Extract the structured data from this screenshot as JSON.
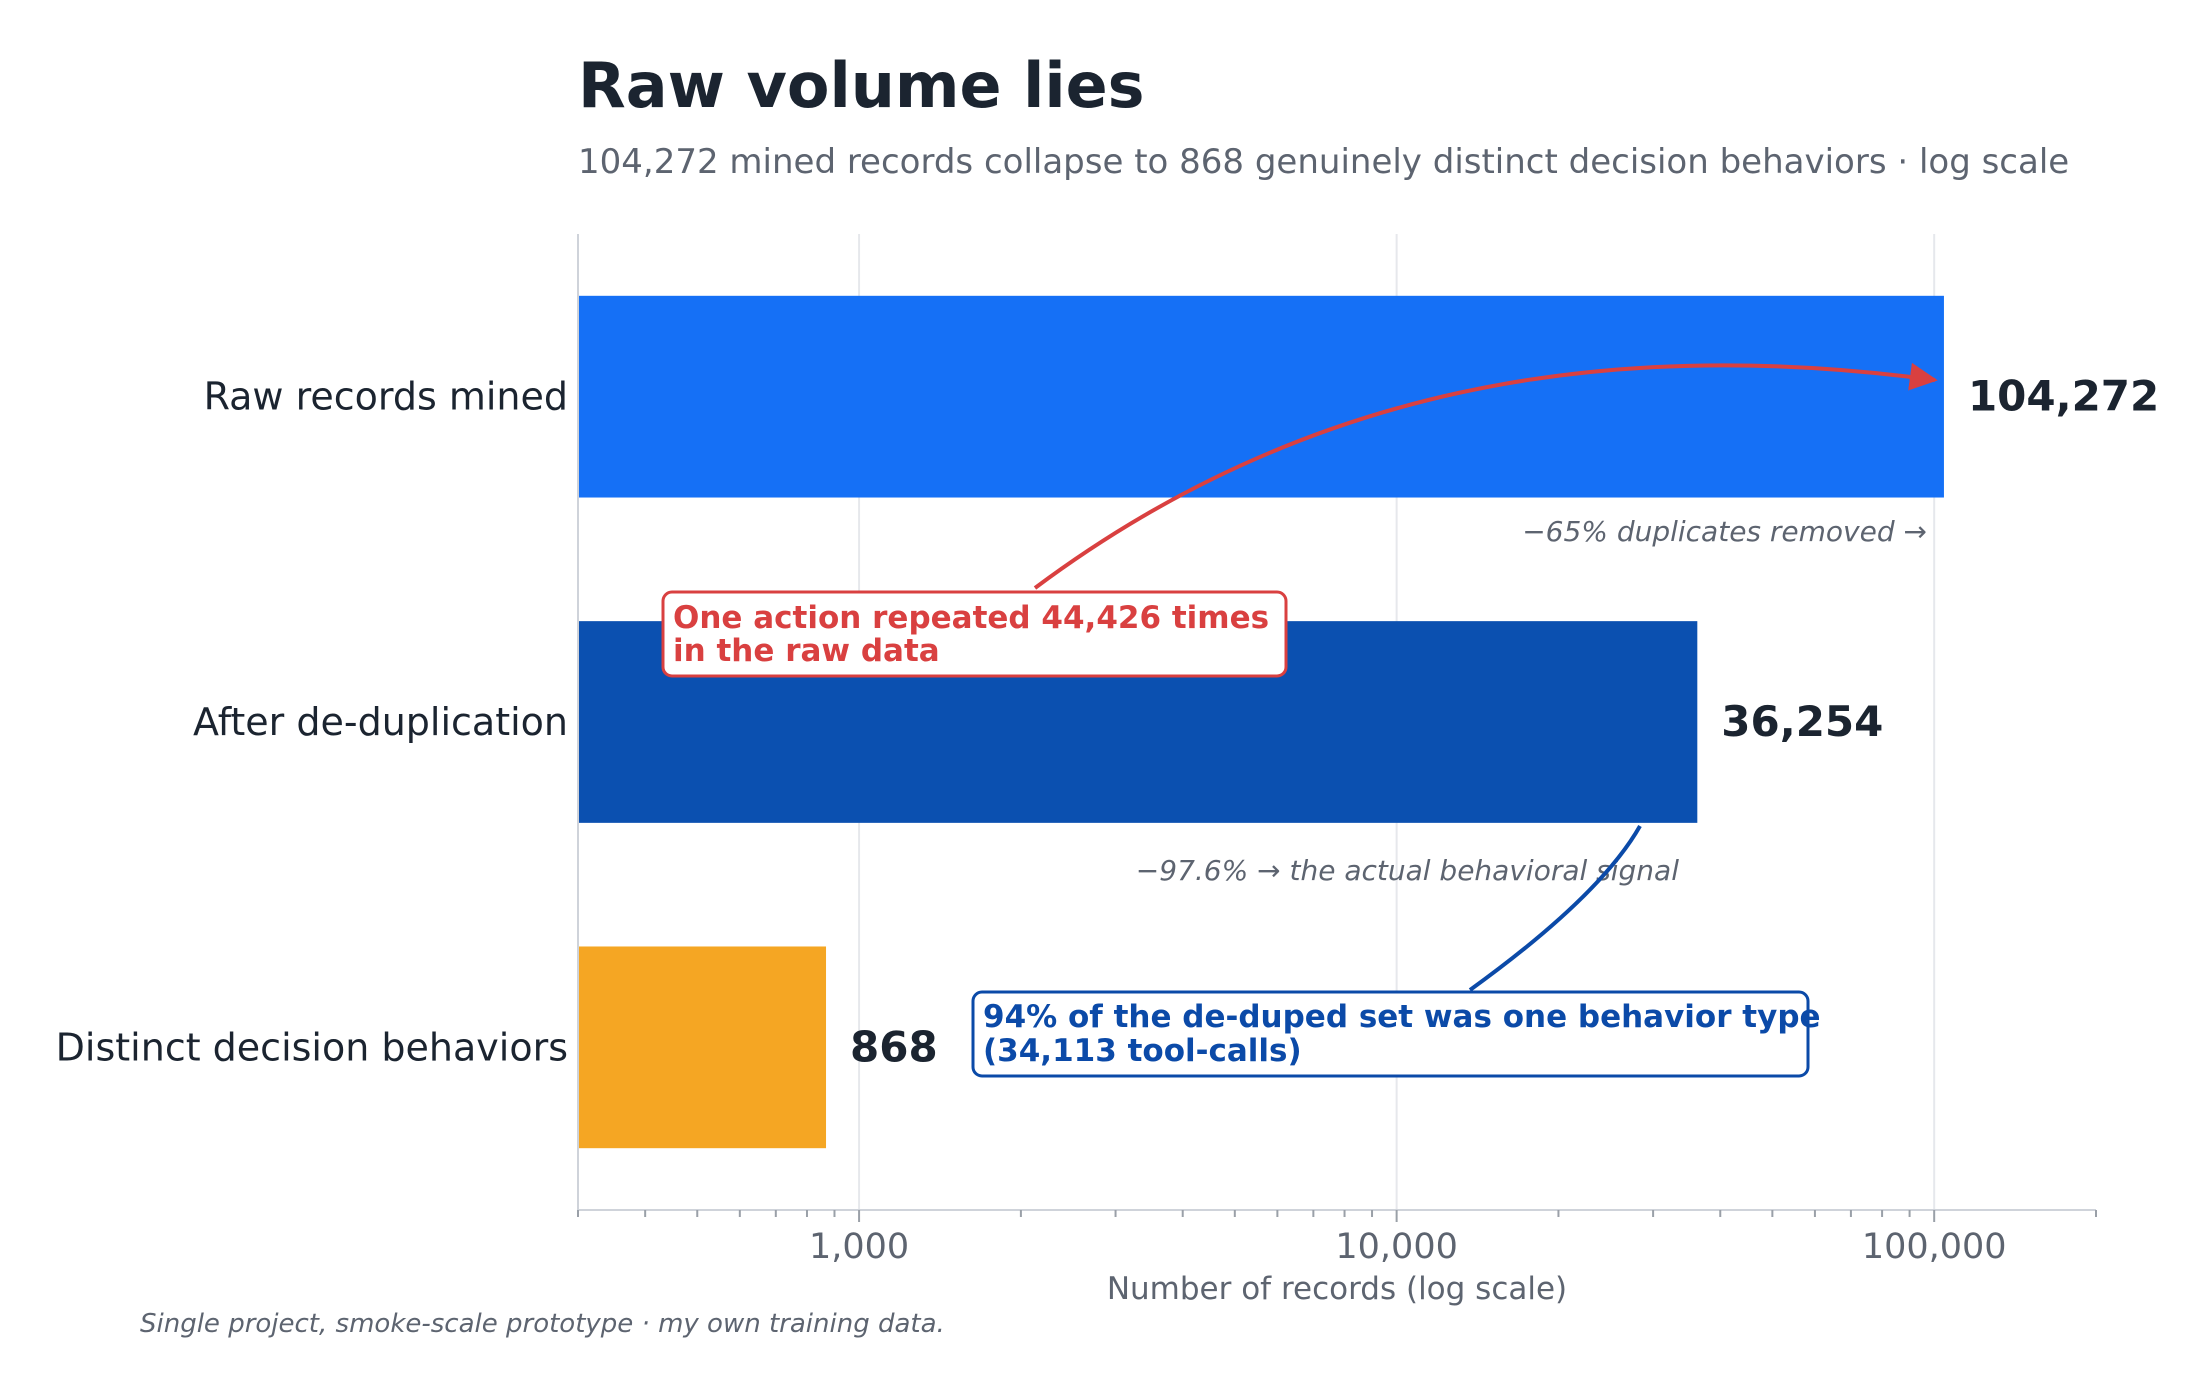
{
  "chart_data": {
    "type": "bar",
    "orientation": "horizontal",
    "title": "Raw volume lies",
    "subtitle": "104,272 mined records collapse to 868 genuinely distinct decision behaviors  ·  log scale",
    "xlabel": "Number of records  (log scale)",
    "ylabel": "",
    "x_scale": "log",
    "xlim": [
      300,
      200000
    ],
    "x_ticks": [
      {
        "value": 1000,
        "label": "1,000"
      },
      {
        "value": 10000,
        "label": "10,000"
      },
      {
        "value": 100000,
        "label": "100,000"
      }
    ],
    "grid": "vertical",
    "categories": [
      "Raw records mined",
      "After de-duplication",
      "Distinct decision behaviors"
    ],
    "values": [
      104272,
      36254,
      868
    ],
    "value_labels": [
      "104,272",
      "36,254",
      "868"
    ],
    "bar_colors": [
      "#1570f6",
      "#0b50b0",
      "#f5a623"
    ],
    "step_notes": [
      "−65% duplicates removed →",
      "−97.6% → the actual behavioral signal"
    ],
    "annotations": [
      {
        "lines": [
          "One action repeated 44,426 times",
          "in the raw data"
        ],
        "color": "#d94040",
        "points_to": "Raw records mined"
      },
      {
        "lines": [
          "94% of the de-duped set was one behavior type",
          "(34,113 tool-calls)"
        ],
        "color": "#0b4aa8",
        "points_to": "After de-duplication"
      }
    ]
  },
  "footer": "Single project, smoke-scale prototype · my own training data."
}
